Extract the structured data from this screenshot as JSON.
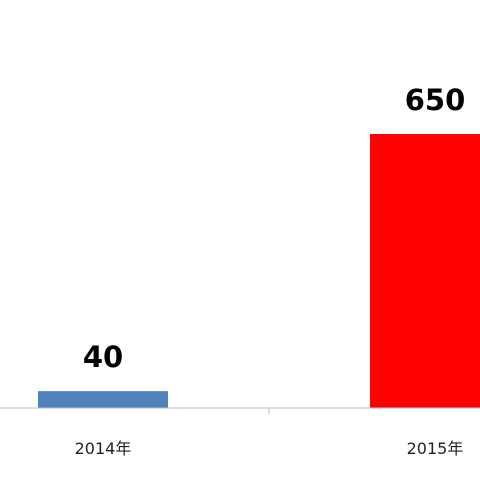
{
  "chart_data": {
    "type": "bar",
    "categories": [
      "2014年",
      "2015年"
    ],
    "values": [
      40,
      650
    ],
    "colors": [
      "#4f81bd",
      "#ff0000"
    ]
  }
}
